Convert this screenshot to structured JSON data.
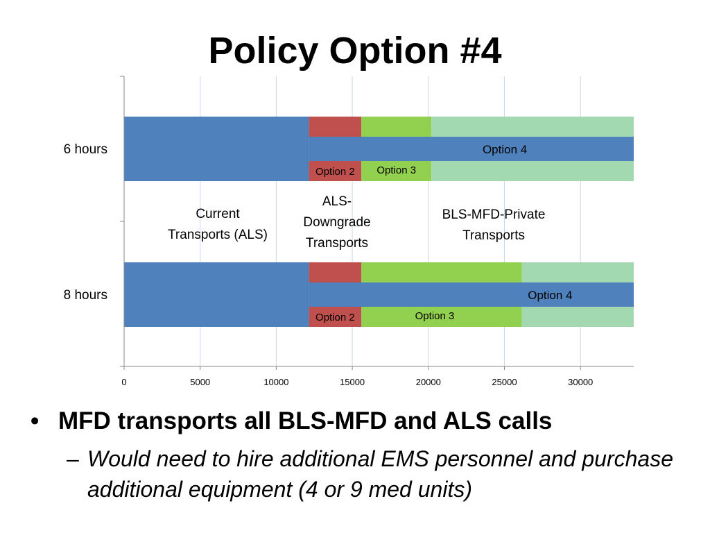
{
  "slide": {
    "title": "Policy Option #4",
    "bullet_main": "MFD transports all BLS-MFD and ALS calls",
    "bullet_sub": "Would need to hire additional EMS personnel and purchase additional equipment (4 or 9 med units)",
    "bullet_marker": "•",
    "sub_marker": "–"
  },
  "chart_data": {
    "type": "bar",
    "orientation": "horizontal",
    "stacked": true,
    "categories": [
      "6 hours",
      "8 hours"
    ],
    "x_ticks": [
      "0",
      "5000",
      "10000",
      "15000",
      "20000",
      "25000",
      "30000"
    ],
    "xlim": [
      0,
      33500
    ],
    "grid": "vertical",
    "colors": {
      "current": "#4F81BD",
      "option2": "#C0504D",
      "option3": "#92D050",
      "option4_light": "#A3D9B1",
      "option4_band": "#4F81BD"
    },
    "groups": [
      {
        "category": "6 hours",
        "current_als": 12150,
        "option2_end": 15600,
        "option3_end": 20200,
        "option4_end": 33500,
        "labels": {
          "option4": "Option 4",
          "option2": "Option 2",
          "option3": "Option 3"
        }
      },
      {
        "category": "8 hours",
        "current_als": 12150,
        "option2_end": 15600,
        "option3_end": 26150,
        "option4_end": 33500,
        "labels": {
          "option4": "Option 4",
          "option2": "Option 2",
          "option3": "Option 3"
        }
      }
    ],
    "annotations": [
      {
        "text": [
          "Current",
          "Transports (ALS)"
        ]
      },
      {
        "text": [
          "ALS-",
          "Downgrade",
          "Transports"
        ]
      },
      {
        "text": [
          "BLS-MFD-Private",
          "Transports"
        ]
      }
    ]
  }
}
